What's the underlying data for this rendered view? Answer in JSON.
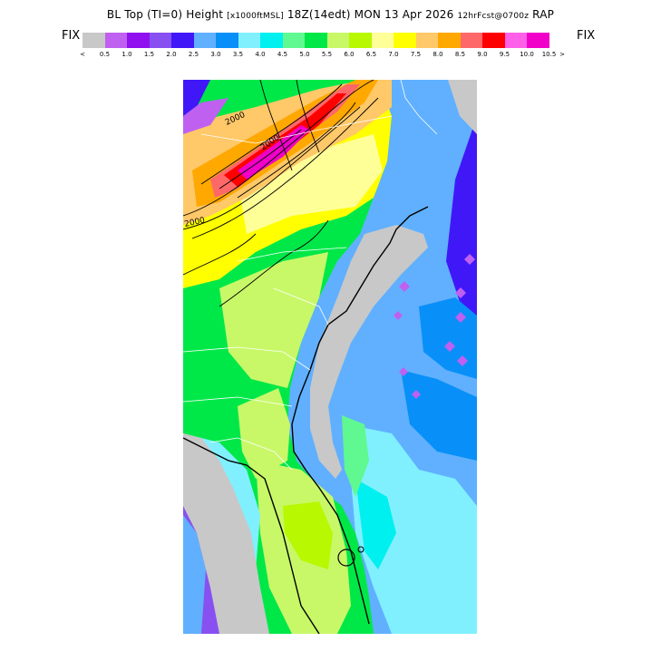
{
  "header": {
    "title_main": "BL Top (TI=0) Height",
    "units": "[x1000ftMSL]",
    "time": "18Z(14edt) MON 13 Apr 2026",
    "forecast": "12hrFcst@0700z",
    "model": "RAP"
  },
  "legend": {
    "left_label": "FIX",
    "right_label": "FIX",
    "under_symbol": "<",
    "over_symbol": ">",
    "ticks": [
      "0.5",
      "1.0",
      "1.5",
      "2.0",
      "2.5",
      "3.0",
      "3.5",
      "4.0",
      "4.5",
      "5.0",
      "5.5",
      "6.0",
      "6.5",
      "7.0",
      "7.5",
      "8.0",
      "8.5",
      "9.0",
      "9.5",
      "10.0",
      "10.5"
    ],
    "colors": [
      "#c8c8c8",
      "#c060f0",
      "#9010f0",
      "#8850f0",
      "#4018f8",
      "#60b0ff",
      "#0890f8",
      "#80f0ff",
      "#00f0f0",
      "#60f890",
      "#00e848",
      "#c8f868",
      "#b8f800",
      "#ffff98",
      "#ffff00",
      "#ffc868",
      "#ffa800",
      "#ff6868",
      "#ff0000",
      "#ff60e8",
      "#f000c8"
    ]
  },
  "map": {
    "contour_labels": [
      "2000",
      "2000",
      "2000"
    ]
  }
}
